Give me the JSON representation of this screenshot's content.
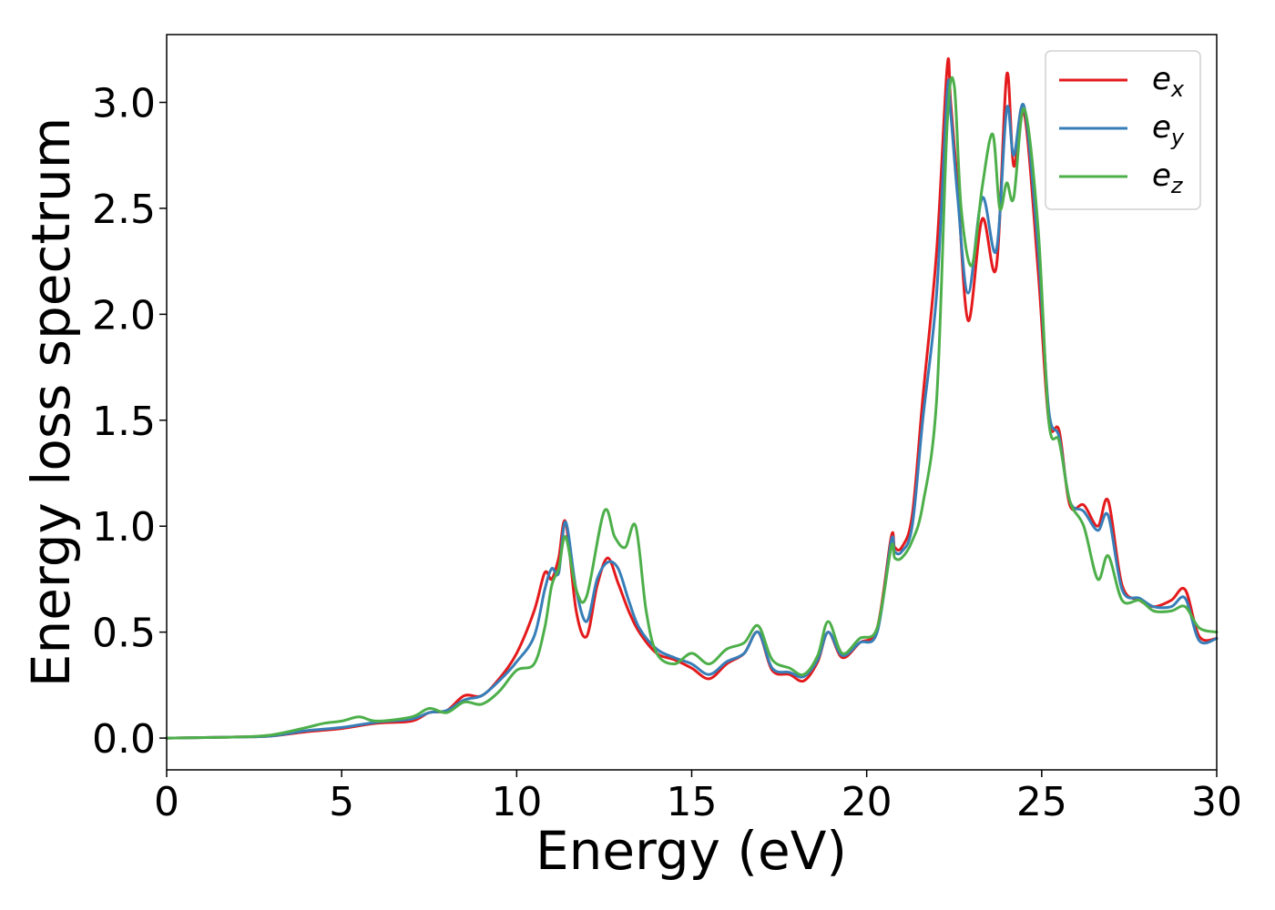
{
  "chart_data": {
    "type": "line",
    "xlabel": "Energy (eV)",
    "ylabel": "Energy loss spectrum",
    "xlim": [
      0,
      30
    ],
    "ylim": [
      -0.15,
      3.32
    ],
    "xticks": [
      0,
      5,
      10,
      15,
      20,
      25,
      30
    ],
    "xtick_labels": [
      "0",
      "5",
      "10",
      "15",
      "20",
      "25",
      "30"
    ],
    "yticks": [
      0.0,
      0.5,
      1.0,
      1.5,
      2.0,
      2.5,
      3.0
    ],
    "ytick_labels": [
      "0.0",
      "0.5",
      "1.0",
      "1.5",
      "2.0",
      "2.5",
      "3.0"
    ],
    "grid": false,
    "legend_position": "top-right",
    "series": [
      {
        "name": "e",
        "sub": "x",
        "color": "#e41a1c",
        "x": [
          0,
          2,
          3,
          4,
          5,
          6,
          7,
          7.5,
          8,
          8.5,
          9,
          9.5,
          10,
          10.5,
          10.8,
          11,
          11.2,
          11.4,
          11.7,
          12,
          12.3,
          12.6,
          12.9,
          13.2,
          13.5,
          14,
          14.5,
          15,
          15.5,
          16,
          16.5,
          16.9,
          17.3,
          17.8,
          18.2,
          18.6,
          18.9,
          19.3,
          19.8,
          20.3,
          20.7,
          20.8,
          21,
          21.3,
          21.6,
          22,
          22.3,
          22.4,
          22.6,
          22.9,
          23.3,
          23.7,
          24,
          24.2,
          24.5,
          24.9,
          25.2,
          25.5,
          25.8,
          26.2,
          26.6,
          26.9,
          27.3,
          27.8,
          28.2,
          28.7,
          29.1,
          29.5,
          30
        ],
        "y": [
          0,
          0.005,
          0.01,
          0.03,
          0.045,
          0.07,
          0.08,
          0.12,
          0.13,
          0.2,
          0.2,
          0.28,
          0.4,
          0.6,
          0.78,
          0.75,
          0.85,
          1.02,
          0.6,
          0.48,
          0.72,
          0.85,
          0.73,
          0.6,
          0.5,
          0.4,
          0.37,
          0.33,
          0.28,
          0.35,
          0.4,
          0.5,
          0.32,
          0.3,
          0.27,
          0.36,
          0.5,
          0.38,
          0.45,
          0.52,
          0.95,
          0.9,
          0.9,
          1.05,
          1.6,
          2.3,
          3.17,
          3.0,
          2.6,
          1.97,
          2.45,
          2.22,
          3.13,
          2.7,
          2.95,
          2.2,
          1.5,
          1.45,
          1.1,
          1.1,
          1.0,
          1.12,
          0.72,
          0.65,
          0.62,
          0.65,
          0.7,
          0.48,
          0.47
        ]
      },
      {
        "name": "e",
        "sub": "y",
        "color": "#377eb8",
        "x": [
          0,
          2,
          3,
          4,
          5,
          6,
          7,
          7.5,
          8,
          8.5,
          9,
          9.5,
          10,
          10.5,
          10.8,
          11,
          11.2,
          11.4,
          11.7,
          12,
          12.3,
          12.6,
          12.9,
          13.2,
          13.5,
          14,
          14.5,
          15,
          15.5,
          16,
          16.5,
          16.9,
          17.3,
          17.8,
          18.2,
          18.6,
          18.9,
          19.3,
          19.8,
          20.3,
          20.7,
          20.8,
          21,
          21.3,
          21.6,
          22,
          22.3,
          22.4,
          22.6,
          22.9,
          23.3,
          23.7,
          24,
          24.2,
          24.5,
          24.9,
          25.2,
          25.5,
          25.8,
          26.2,
          26.6,
          26.9,
          27.3,
          27.8,
          28.2,
          28.7,
          29.1,
          29.5,
          30
        ],
        "y": [
          0,
          0.005,
          0.01,
          0.035,
          0.05,
          0.075,
          0.09,
          0.12,
          0.13,
          0.18,
          0.2,
          0.27,
          0.36,
          0.48,
          0.7,
          0.8,
          0.78,
          1.02,
          0.7,
          0.55,
          0.75,
          0.83,
          0.8,
          0.65,
          0.52,
          0.42,
          0.38,
          0.35,
          0.3,
          0.36,
          0.4,
          0.5,
          0.33,
          0.31,
          0.29,
          0.37,
          0.5,
          0.39,
          0.45,
          0.5,
          0.93,
          0.88,
          0.88,
          1.0,
          1.5,
          2.1,
          3.05,
          2.95,
          2.55,
          2.1,
          2.55,
          2.3,
          2.97,
          2.75,
          2.98,
          2.3,
          1.55,
          1.42,
          1.12,
          1.07,
          0.98,
          1.05,
          0.7,
          0.66,
          0.62,
          0.62,
          0.66,
          0.46,
          0.47
        ]
      },
      {
        "name": "e",
        "sub": "z",
        "color": "#4daf4a",
        "x": [
          0,
          2,
          3,
          4,
          4.5,
          5,
          5.5,
          6,
          7,
          7.5,
          8,
          8.5,
          9,
          9.5,
          10,
          10.5,
          10.8,
          11,
          11.2,
          11.4,
          11.7,
          12,
          12.5,
          12.8,
          13.1,
          13.4,
          13.7,
          14,
          14.5,
          15,
          15.5,
          16,
          16.5,
          16.9,
          17.3,
          17.8,
          18.2,
          18.6,
          18.9,
          19.3,
          19.8,
          20.3,
          20.7,
          20.8,
          21,
          21.3,
          21.6,
          22,
          22.3,
          22.5,
          22.7,
          23,
          23.3,
          23.6,
          23.8,
          24,
          24.2,
          24.5,
          24.9,
          25.2,
          25.5,
          25.8,
          26.2,
          26.6,
          26.9,
          27.3,
          27.8,
          28.2,
          28.7,
          29.1,
          29.5,
          30
        ],
        "y": [
          0,
          0.005,
          0.015,
          0.05,
          0.07,
          0.08,
          0.1,
          0.08,
          0.1,
          0.14,
          0.12,
          0.17,
          0.16,
          0.22,
          0.32,
          0.35,
          0.52,
          0.72,
          0.8,
          0.95,
          0.7,
          0.67,
          1.07,
          0.95,
          0.9,
          1.0,
          0.6,
          0.4,
          0.35,
          0.4,
          0.35,
          0.42,
          0.45,
          0.53,
          0.37,
          0.33,
          0.3,
          0.39,
          0.55,
          0.4,
          0.47,
          0.52,
          0.9,
          0.85,
          0.85,
          0.93,
          1.1,
          1.6,
          2.9,
          3.08,
          2.5,
          2.23,
          2.6,
          2.85,
          2.5,
          2.62,
          2.55,
          2.97,
          2.4,
          1.5,
          1.4,
          1.12,
          1.0,
          0.75,
          0.86,
          0.65,
          0.65,
          0.6,
          0.6,
          0.62,
          0.52,
          0.5
        ]
      }
    ]
  }
}
